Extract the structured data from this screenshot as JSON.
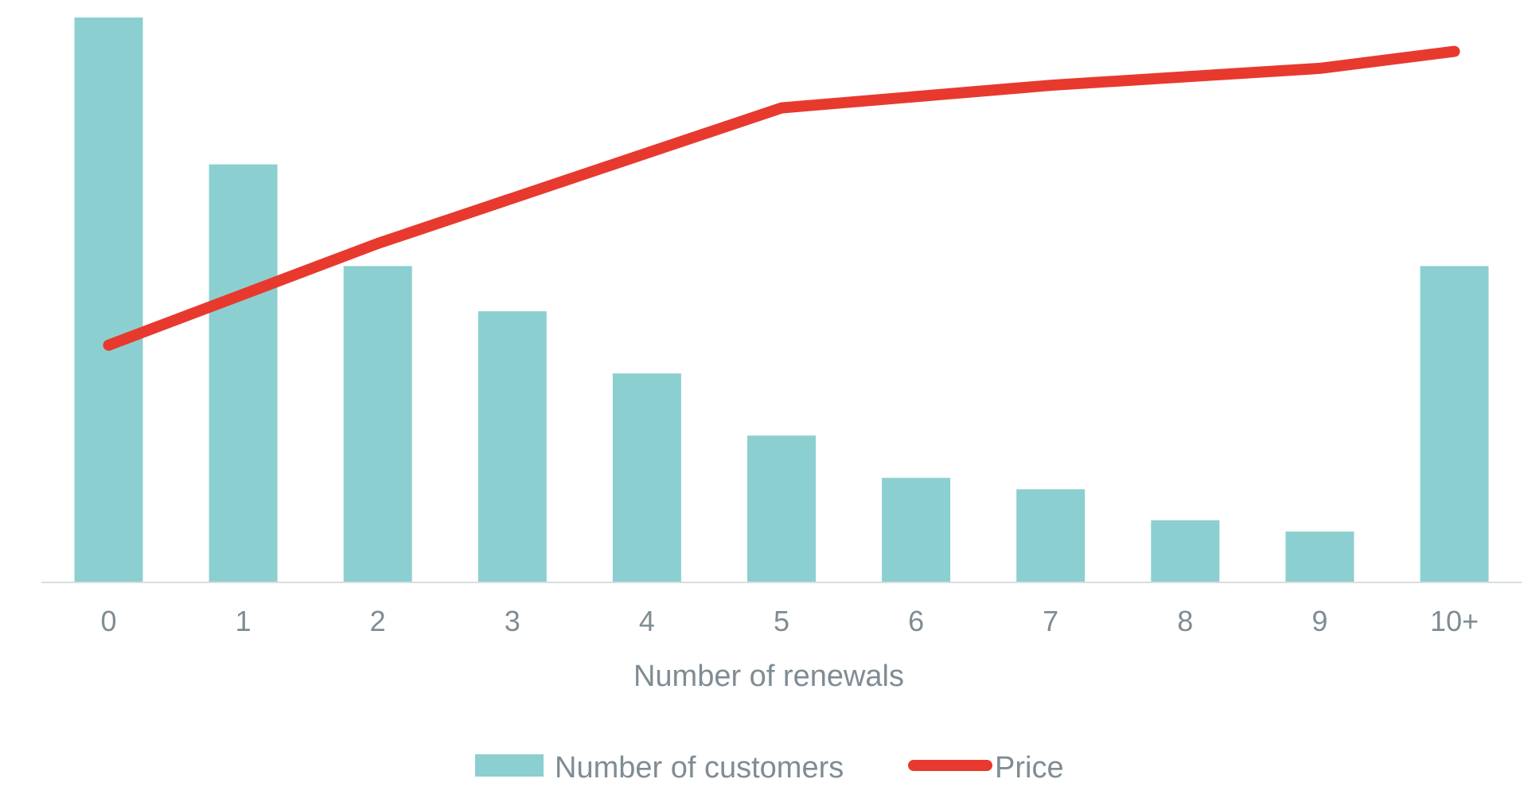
{
  "chart_data": {
    "type": "bar",
    "categories": [
      "0",
      "1",
      "2",
      "3",
      "4",
      "5",
      "6",
      "7",
      "8",
      "9",
      "10+"
    ],
    "xlabel": "Number of renewals",
    "series": [
      {
        "name": "Number of customers",
        "kind": "bar",
        "color": "#8ccfd0",
        "values": [
          100,
          74,
          56,
          48,
          37,
          26,
          18.5,
          16.5,
          11,
          9,
          56
        ]
      },
      {
        "name": "Price",
        "kind": "line",
        "color": "#e8392e",
        "values": [
          42,
          51,
          60,
          68,
          76,
          84,
          86,
          88,
          89.5,
          91,
          94
        ]
      }
    ],
    "ylim": [
      0,
      100
    ],
    "grid": false,
    "legend_position": "bottom"
  }
}
